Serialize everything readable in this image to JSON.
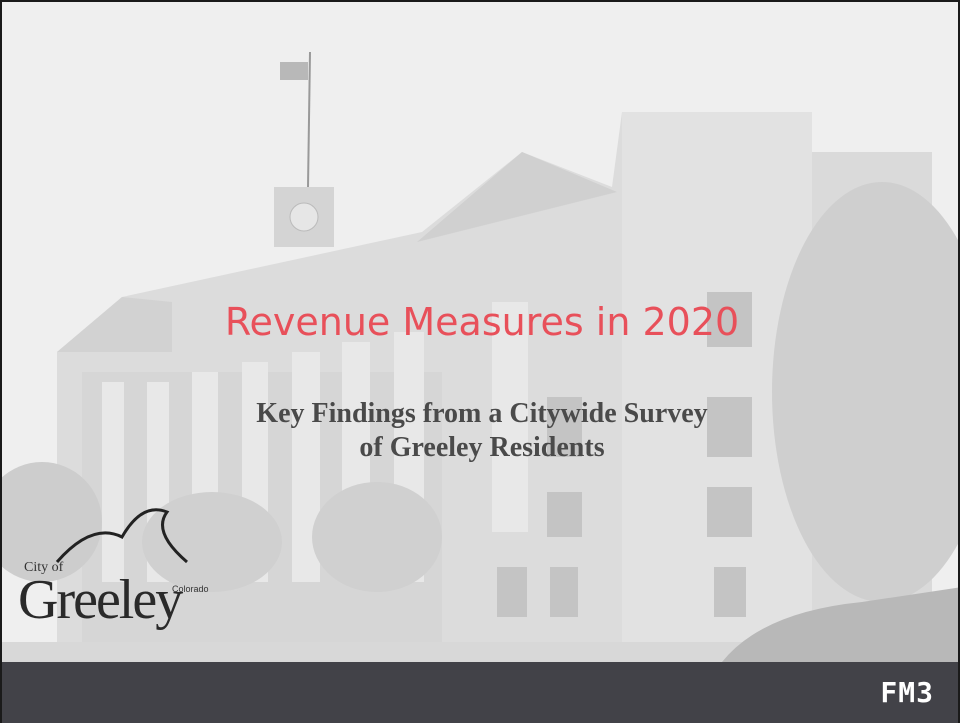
{
  "slide": {
    "title": "Revenue Measures in 2020",
    "subtitle_lines": [
      "Key Findings from a Citywide Survey",
      "of Greeley Residents"
    ],
    "city_logo": {
      "prefix": "City of",
      "name": "Greeley",
      "state": "Colorado"
    },
    "footer_logo": "FM3"
  }
}
